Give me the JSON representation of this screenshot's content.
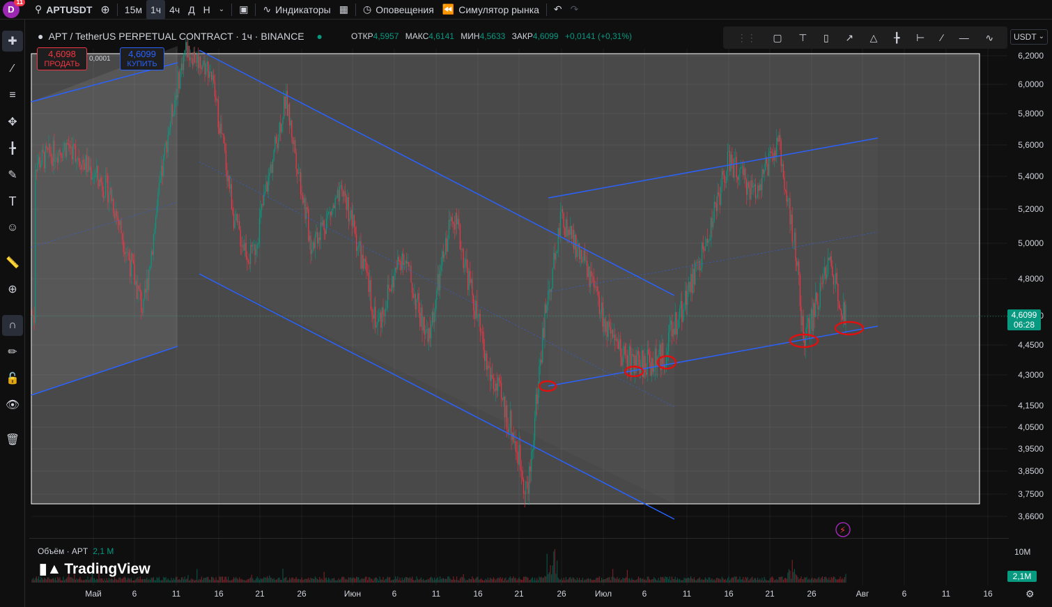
{
  "top_bar": {
    "avatar_letter": "D",
    "avatar_badge": "11",
    "symbol": "APTUSDT",
    "timeframes": [
      "15м",
      "1ч",
      "4ч",
      "Д",
      "Н"
    ],
    "active_timeframe": "1ч",
    "indicators_label": "Индикаторы",
    "alerts_label": "Оповещения",
    "replay_label": "Симулятор рынка"
  },
  "legend": {
    "title": "APT / TetherUS PERPETUAL CONTRACT · 1ч · BINANCE",
    "open_label": "ОТКР",
    "open_value": "4,5957",
    "high_label": "МАКС",
    "high_value": "4,6141",
    "low_label": "МИН",
    "low_value": "4,5633",
    "close_label": "ЗАКР",
    "close_value": "4,6099",
    "change": "+0,0141 (+0,31%)"
  },
  "trade": {
    "sell_price": "4,6098",
    "sell_label": "ПРОДАТЬ",
    "spread": "0,0001",
    "buy_price": "4,6099",
    "buy_label": "КУПИТЬ"
  },
  "currency_select": "USDT",
  "y_axis_labels": [
    "6,2000",
    "6,0000",
    "5,8000",
    "5,6000",
    "5,4000",
    "5,2000",
    "5,0000",
    "4,8000",
    "4,6000",
    "4,4500",
    "4,3000",
    "4,1500",
    "4,0500",
    "3,9500",
    "3,8500",
    "3,7500",
    "3,6600"
  ],
  "current_price": {
    "value": "4,6099",
    "countdown": "06:28"
  },
  "volume": {
    "label": "Объём · APT",
    "value": "2,1 M",
    "axis_label": "10M",
    "current": "2,1M"
  },
  "x_axis_labels": [
    "Май",
    "6",
    "11",
    "16",
    "21",
    "26",
    "Июн",
    "6",
    "11",
    "16",
    "21",
    "26",
    "Июл",
    "6",
    "11",
    "16",
    "21",
    "26",
    "Авг",
    "6",
    "11",
    "16"
  ],
  "brand": "TradingView",
  "colors": {
    "up": "#089981",
    "down": "#f23645",
    "channel": "#2962ff",
    "marker": "#e01010"
  },
  "chart_data": {
    "type": "candlestick",
    "title": "APT / TetherUS PERPETUAL CONTRACT · 1ч · BINANCE",
    "ylim": [
      3.66,
      6.25
    ],
    "y_scale": "log",
    "grid": true,
    "path": [
      [
        "2024-04-24",
        5.48
      ],
      [
        "2024-04-28",
        5.6
      ],
      [
        "2024-05-03",
        5.3
      ],
      [
        "2024-05-07",
        4.62
      ],
      [
        "2024-05-10",
        5.7
      ],
      [
        "2024-05-12",
        6.25
      ],
      [
        "2024-05-15",
        6.1
      ],
      [
        "2024-05-18",
        5.1
      ],
      [
        "2024-05-20",
        4.9
      ],
      [
        "2024-05-24",
        5.9
      ],
      [
        "2024-05-27",
        5.0
      ],
      [
        "2024-05-31",
        5.3
      ],
      [
        "2024-06-04",
        4.55
      ],
      [
        "2024-06-07",
        4.95
      ],
      [
        "2024-06-10",
        4.45
      ],
      [
        "2024-06-13",
        5.2
      ],
      [
        "2024-06-17",
        4.35
      ],
      [
        "2024-06-20",
        4.05
      ],
      [
        "2024-06-22",
        3.75
      ],
      [
        "2024-06-24",
        4.6
      ],
      [
        "2024-06-26",
        5.15
      ],
      [
        "2024-06-29",
        4.85
      ],
      [
        "2024-07-02",
        4.45
      ],
      [
        "2024-07-05",
        4.35
      ],
      [
        "2024-07-08",
        4.38
      ],
      [
        "2024-07-10",
        4.6
      ],
      [
        "2024-07-13",
        4.95
      ],
      [
        "2024-07-16",
        5.5
      ],
      [
        "2024-07-19",
        5.3
      ],
      [
        "2024-07-22",
        5.6
      ],
      [
        "2024-07-24",
        4.95
      ],
      [
        "2024-07-25",
        4.45
      ],
      [
        "2024-07-28",
        4.9
      ],
      [
        "2024-07-30",
        4.6
      ]
    ]
  }
}
